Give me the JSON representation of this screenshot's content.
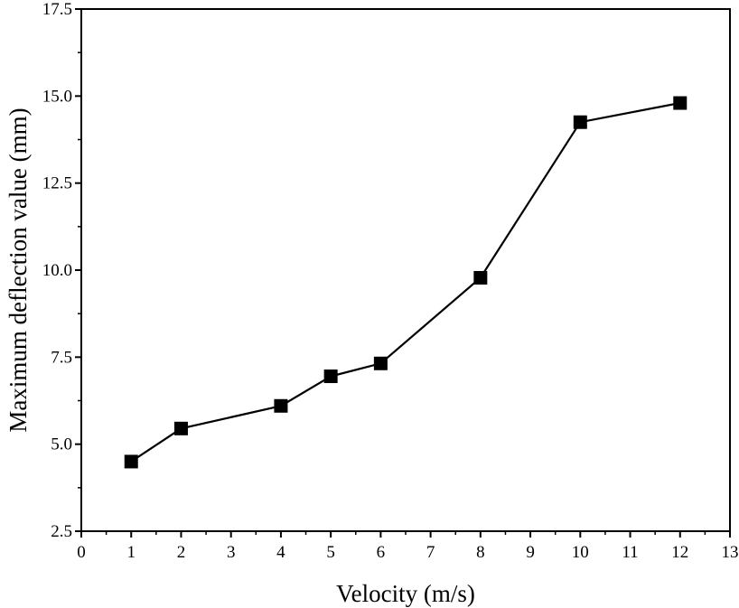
{
  "chart_data": {
    "type": "line",
    "title": "",
    "xlabel": "Velocity (m/s)",
    "ylabel": "Maximum deflection value (mm)",
    "xlim": [
      0,
      13
    ],
    "ylim": [
      2.5,
      17.5
    ],
    "x_ticks": [
      "0",
      "1",
      "2",
      "3",
      "4",
      "5",
      "6",
      "7",
      "8",
      "9",
      "10",
      "11",
      "12",
      "13"
    ],
    "y_ticks": [
      "2.5",
      "5.0",
      "7.5",
      "10.0",
      "12.5",
      "15.0",
      "17.5"
    ],
    "grid": false,
    "legend": "none",
    "marker": "square",
    "series_color": "#000000",
    "series": [
      {
        "x": [
          1,
          2,
          4,
          5,
          6,
          8,
          10,
          12
        ],
        "y": [
          4.5,
          5.45,
          6.1,
          6.95,
          7.32,
          9.78,
          14.25,
          14.8
        ]
      }
    ]
  }
}
